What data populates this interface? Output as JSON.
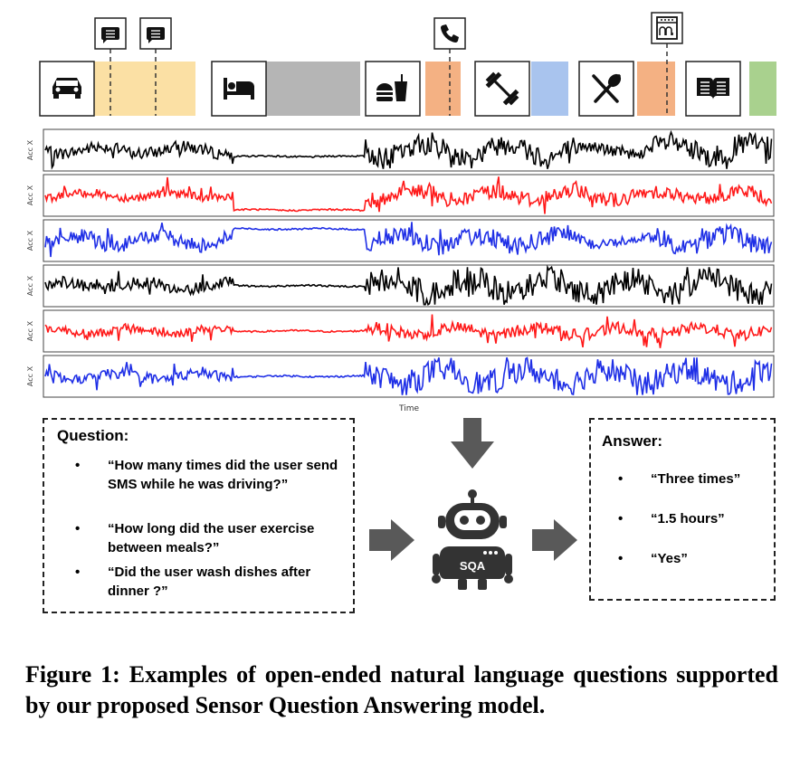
{
  "figure": {
    "activity_icons": [
      "car-icon",
      "bed-icon",
      "burger-drink-icon",
      "dumbbell-icon",
      "fork-spoon-icon",
      "book-icon"
    ],
    "event_icons": [
      "sms-icon",
      "sms-icon",
      "phone-icon",
      "dishwasher-icon"
    ],
    "activity_colors": [
      "#fbe0a4",
      "#b5b5b5",
      "#f4b183",
      "#a9c4ee",
      "#f4b183",
      "#a9d18e"
    ],
    "signal_colors": [
      "#000000",
      "#ff1a1a",
      "#1f2fe6",
      "#000000",
      "#ff1a1a",
      "#1f2fe6"
    ],
    "acc_label": "Acc X",
    "time_label": "Time",
    "question": {
      "title": "Question:",
      "items": [
        "“How many times did the user send SMS while he was driving?”",
        "“How long did the user exercise between meals?”",
        "“Did the user wash dishes after dinner ?”"
      ]
    },
    "answer": {
      "title": "Answer:",
      "items": [
        "“Three times”",
        "“1.5 hours”",
        "“Yes”"
      ]
    },
    "robot_label": "SQA"
  },
  "caption": "Figure 1: Examples of open-ended natural language questions supported by our proposed Sensor Question Answering model."
}
